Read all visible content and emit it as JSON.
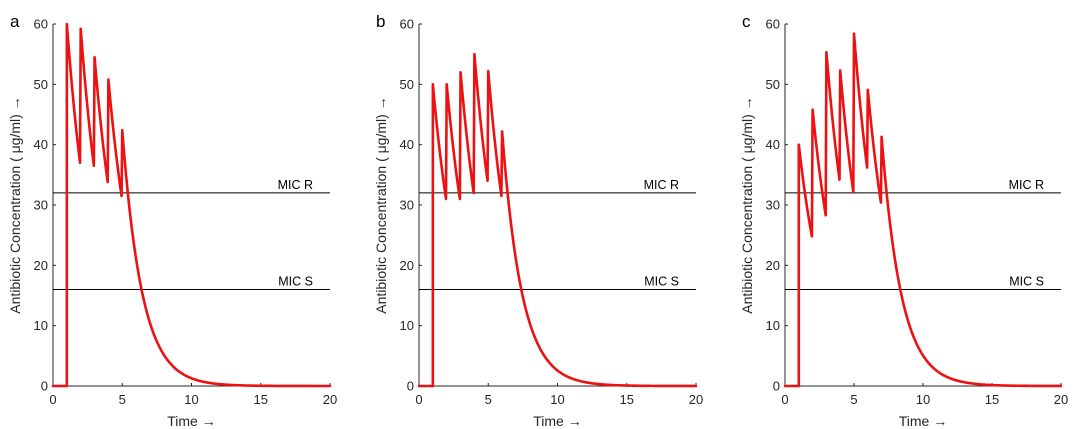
{
  "chart_data": [
    {
      "type": "line",
      "panel_label": "a",
      "xlabel": "Time →",
      "ylabel": "Antibiotic Concentration ( μg/ml) →",
      "xlim": [
        0,
        20
      ],
      "ylim": [
        0,
        60
      ],
      "xticks": [
        0,
        5,
        10,
        15,
        20
      ],
      "yticks": [
        0,
        10,
        20,
        30,
        40,
        50,
        60
      ],
      "grid": false,
      "reference_lines": [
        {
          "label": "MIC R",
          "y": 32
        },
        {
          "label": "MIC S",
          "y": 16
        }
      ],
      "series": [
        {
          "color": "#ee1111",
          "dose_times": [
            1,
            2,
            3,
            4,
            5
          ],
          "dose_peaks": [
            60,
            59.2,
            54.5,
            50.8,
            42.4
          ],
          "trough_times": [
            1.95,
            2.95,
            3.95,
            4.95
          ],
          "trough_values": [
            37,
            36.5,
            33.8,
            31.5
          ],
          "decay_rate_per_unit_time": 0.7,
          "x": [
            0,
            1,
            1,
            1.95,
            2,
            2.95,
            3,
            3.95,
            4,
            4.95,
            5,
            5.5,
            6,
            7,
            8,
            9,
            10,
            12,
            14,
            16,
            18,
            20
          ],
          "y": [
            0,
            0,
            60,
            37,
            59.2,
            36.5,
            54.5,
            33.8,
            50.8,
            31.5,
            42.4,
            29.8,
            20.9,
            10.4,
            5.1,
            2.5,
            1.3,
            0.3,
            0.1,
            0,
            0,
            0
          ]
        }
      ]
    },
    {
      "type": "line",
      "panel_label": "b",
      "xlabel": "Time →",
      "ylabel": "Antibiotic Concentration ( μg/ml) →",
      "xlim": [
        0,
        20
      ],
      "ylim": [
        0,
        60
      ],
      "xticks": [
        0,
        5,
        10,
        15,
        20
      ],
      "yticks": [
        0,
        10,
        20,
        30,
        40,
        50,
        60
      ],
      "grid": false,
      "reference_lines": [
        {
          "label": "MIC R",
          "y": 32
        },
        {
          "label": "MIC S",
          "y": 16
        }
      ],
      "series": [
        {
          "color": "#ee1111",
          "dose_times": [
            1,
            2,
            3,
            4,
            5,
            6
          ],
          "dose_peaks": [
            50,
            50,
            52,
            55,
            52.2,
            42.2
          ],
          "trough_times": [
            1.95,
            2.95,
            3.95,
            4.95,
            5.95
          ],
          "trough_values": [
            31,
            31,
            32,
            34,
            31.5
          ],
          "decay_rate_per_unit_time": 0.7,
          "x": [
            0,
            1,
            1,
            1.95,
            2,
            2.95,
            3,
            3.95,
            4,
            4.95,
            5,
            5.95,
            6,
            6.5,
            7,
            8,
            9,
            10,
            12,
            14,
            16,
            18,
            20
          ],
          "y": [
            0,
            0,
            50,
            31,
            50,
            31,
            52,
            32,
            55,
            34,
            52.2,
            31.5,
            42.2,
            29.8,
            20.9,
            10.4,
            5.1,
            2.5,
            0.6,
            0.1,
            0,
            0,
            0
          ]
        }
      ]
    },
    {
      "type": "line",
      "panel_label": "c",
      "xlabel": "Time →",
      "ylabel": "Antibiotic Concentration ( μg/ml) →",
      "xlim": [
        0,
        20
      ],
      "ylim": [
        0,
        60
      ],
      "xticks": [
        0,
        5,
        10,
        15,
        20
      ],
      "yticks": [
        0,
        10,
        20,
        30,
        40,
        50,
        60
      ],
      "grid": false,
      "reference_lines": [
        {
          "label": "MIC R",
          "y": 32
        },
        {
          "label": "MIC S",
          "y": 16
        }
      ],
      "series": [
        {
          "color": "#ee1111",
          "dose_times": [
            1,
            2,
            3,
            4,
            5,
            6,
            7
          ],
          "dose_peaks": [
            40,
            45.8,
            55.3,
            52.3,
            58.4,
            49.1,
            41.3
          ],
          "trough_times": [
            1.95,
            2.95,
            3.95,
            4.95,
            5.95,
            6.95
          ],
          "trough_values": [
            24.8,
            28.3,
            34.2,
            32.2,
            36.2,
            30.4
          ],
          "decay_rate_per_unit_time": 0.7,
          "x": [
            0,
            1,
            1,
            1.95,
            2,
            2.95,
            3,
            3.95,
            4,
            4.95,
            5,
            5.95,
            6,
            6.95,
            7,
            7.5,
            8,
            9,
            10,
            12,
            14,
            16,
            18,
            20
          ],
          "y": [
            0,
            0,
            40,
            24.8,
            45.8,
            28.3,
            55.3,
            34.2,
            52.3,
            32.2,
            58.4,
            36.2,
            49.1,
            30.4,
            41.3,
            29,
            20.5,
            10.2,
            5.1,
            1.2,
            0.3,
            0.1,
            0,
            0
          ]
        }
      ]
    }
  ]
}
